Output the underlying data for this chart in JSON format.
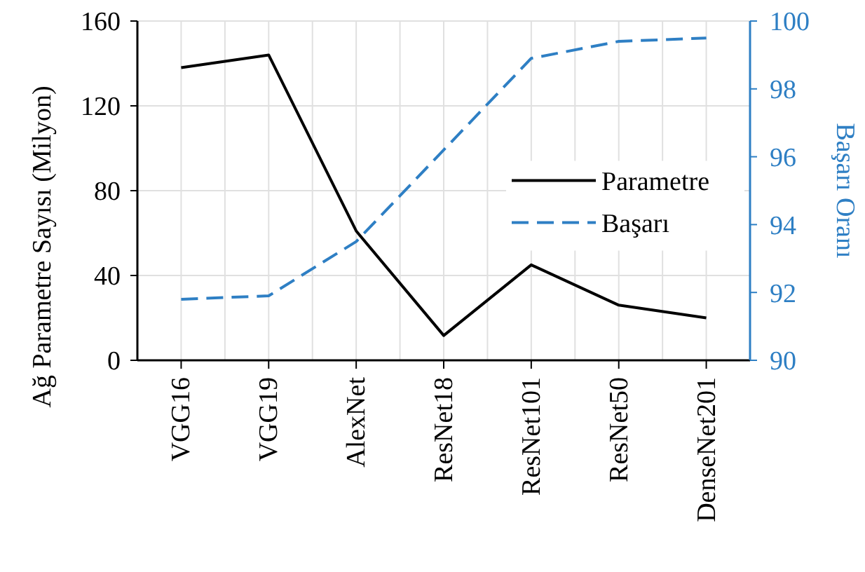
{
  "chart_data": {
    "type": "line",
    "categories": [
      "VGG16",
      "VGG19",
      "AlexNet",
      "ResNet18",
      "ResNet101",
      "ResNet50",
      "DenseNet201"
    ],
    "ylabel": "Ağ Parametre Sayısı  (Milyon)",
    "y2label": "Başarı Oranı",
    "series": [
      {
        "name": "Parametre",
        "color": "#000000",
        "values": [
          138,
          144,
          61,
          11.7,
          45,
          26,
          20
        ],
        "line_style": "solid"
      },
      {
        "name": "Başarı",
        "color": "#2e7fc4",
        "axis": "y2",
        "values": [
          91.8,
          91.9,
          93.5,
          96.2,
          98.9,
          99.4,
          99.5
        ],
        "line_style": "dashed"
      }
    ],
    "ylim": [
      0,
      160
    ],
    "yticks": [
      0,
      40,
      80,
      120,
      160
    ],
    "y2lim": [
      90,
      100
    ],
    "y2ticks": [
      90,
      92,
      94,
      96,
      98,
      100
    ],
    "grid": true,
    "legend": "right",
    "marker": "none"
  }
}
